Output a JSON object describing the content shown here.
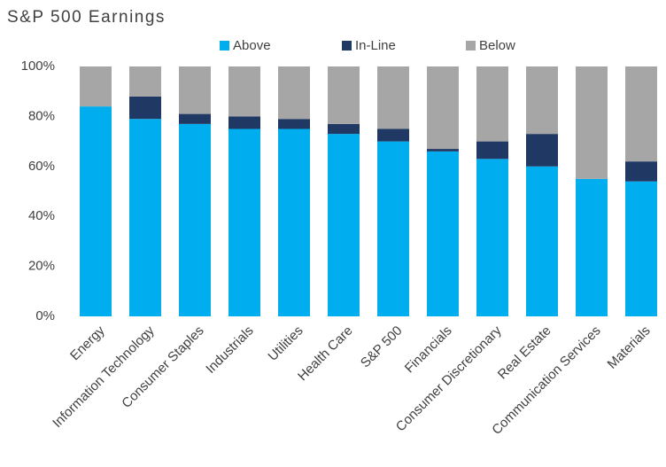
{
  "chart_data": {
    "type": "stacked_bar",
    "title": "S&P 500 Earnings",
    "categories": [
      "Energy",
      "Information Technology",
      "Consumer Staples",
      "Industrials",
      "Utilities",
      "Health Care",
      "S&P 500",
      "Financials",
      "Consumer Discretionary",
      "Real Estate",
      "Communication Services",
      "Materials"
    ],
    "series": [
      {
        "name": "Above",
        "color": "#00aeef",
        "values": [
          84,
          79,
          77,
          75,
          75,
          73,
          70,
          66,
          63,
          60,
          55,
          54
        ]
      },
      {
        "name": "In-Line",
        "color": "#1f3864",
        "values": [
          0,
          9,
          4,
          5,
          4,
          4,
          5,
          1,
          7,
          13,
          0,
          8
        ]
      },
      {
        "name": "Below",
        "color": "#a6a6a6",
        "values": [
          16,
          12,
          19,
          20,
          21,
          23,
          25,
          33,
          30,
          27,
          45,
          38
        ]
      }
    ],
    "ylim": [
      0,
      100
    ],
    "yticks": [
      {
        "value": 0,
        "label": "0%"
      },
      {
        "value": 20,
        "label": "20%"
      },
      {
        "value": 40,
        "label": "40%"
      },
      {
        "value": 60,
        "label": "60%"
      },
      {
        "value": 80,
        "label": "80%"
      },
      {
        "value": 100,
        "label": "100%"
      }
    ],
    "legend": "top"
  }
}
